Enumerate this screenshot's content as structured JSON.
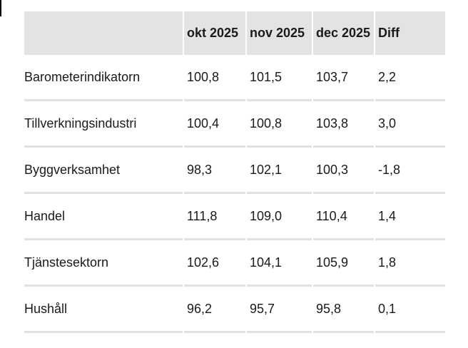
{
  "page": {
    "background": "#ffffff",
    "header_bg": "#e3e3e3",
    "divider_color": "#e1e1e1",
    "text_color": "#1a1a1a"
  },
  "table": {
    "columns": [
      "",
      "okt 2025",
      "nov 2025",
      "dec 2025",
      "Diff"
    ],
    "rows": [
      {
        "label": "Barometerindikatorn",
        "values": [
          "100,8",
          "101,5",
          "103,7",
          "2,2"
        ]
      },
      {
        "label": "Tillverkningsindustri",
        "values": [
          "100,4",
          "100,8",
          "103,8",
          "3,0"
        ]
      },
      {
        "label": "Byggverksamhet",
        "values": [
          "98,3",
          "102,1",
          "100,3",
          "-1,8"
        ]
      },
      {
        "label": "Handel",
        "values": [
          "111,8",
          "109,0",
          "110,4",
          "1,4"
        ]
      },
      {
        "label": "Tjänstesektorn",
        "values": [
          "102,6",
          "104,1",
          "105,9",
          "1,8"
        ]
      },
      {
        "label": "Hushåll",
        "values": [
          "96,2",
          "95,7",
          "95,8",
          "0,1"
        ]
      }
    ]
  },
  "chart_data": {
    "type": "table",
    "title": "",
    "columns": [
      "",
      "okt 2025",
      "nov 2025",
      "dec 2025",
      "Diff"
    ],
    "categories": [
      "Barometerindikatorn",
      "Tillverkningsindustri",
      "Byggverksamhet",
      "Handel",
      "Tjänstesektorn",
      "Hushåll"
    ],
    "series": [
      {
        "name": "okt 2025",
        "values": [
          100.8,
          100.4,
          98.3,
          111.8,
          102.6,
          96.2
        ]
      },
      {
        "name": "nov 2025",
        "values": [
          101.5,
          100.8,
          102.1,
          109.0,
          104.1,
          95.7
        ]
      },
      {
        "name": "dec 2025",
        "values": [
          103.7,
          103.8,
          100.3,
          110.4,
          105.9,
          95.8
        ]
      },
      {
        "name": "Diff",
        "values": [
          2.2,
          3.0,
          -1.8,
          1.4,
          1.8,
          0.1
        ]
      }
    ]
  }
}
